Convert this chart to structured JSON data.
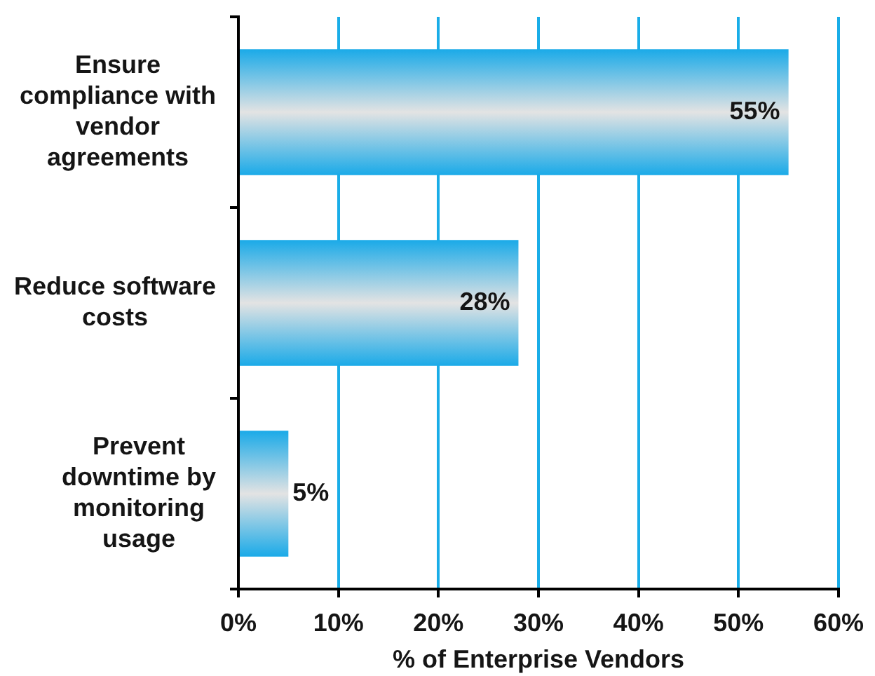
{
  "chart_data": {
    "type": "bar",
    "orientation": "horizontal",
    "categories": [
      "Ensure compliance with vendor agreements",
      "Reduce software costs",
      "Prevent downtime by monitoring usage"
    ],
    "values": [
      55,
      28,
      5
    ],
    "color": "#1aaae8",
    "value_labels": [
      "55%",
      "28%",
      "5%"
    ],
    "xlabel": "% of Enterprise Vendors",
    "xlim": [
      0,
      60
    ],
    "xticks": [
      {
        "value": 0,
        "label": "0%"
      },
      {
        "value": 10,
        "label": "10%"
      },
      {
        "value": 20,
        "label": "20%"
      },
      {
        "value": 30,
        "label": "30%"
      },
      {
        "value": 40,
        "label": "40%"
      },
      {
        "value": 50,
        "label": "50%"
      },
      {
        "value": 60,
        "label": "60%"
      }
    ],
    "grid": "x"
  }
}
